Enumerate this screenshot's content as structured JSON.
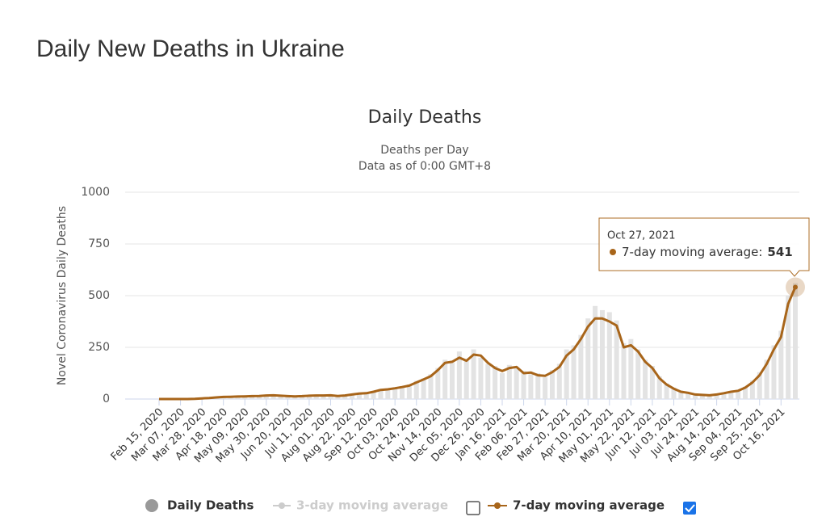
{
  "page_title": "Daily New Deaths in Ukraine",
  "chart_data": {
    "type": "line",
    "title": "Daily Deaths",
    "subtitle": [
      "Deaths per Day",
      "Data as of 0:00 GMT+8"
    ],
    "y_label": "Novel Coronavirus Daily Deaths",
    "categories": [
      "Feb 15, 2020",
      null,
      null,
      "Mar 07, 2020",
      null,
      null,
      "Mar 28, 2020",
      null,
      null,
      "Apr 18, 2020",
      null,
      null,
      "May 09, 2020",
      null,
      null,
      "May 30, 2020",
      null,
      null,
      "Jun 20, 2020",
      null,
      null,
      "Jul 11, 2020",
      null,
      null,
      "Aug 01, 2020",
      null,
      null,
      "Aug 22, 2020",
      null,
      null,
      "Sep 12, 2020",
      null,
      null,
      "Oct 03, 2020",
      null,
      null,
      "Oct 24, 2020",
      null,
      null,
      "Nov 14, 2020",
      null,
      null,
      "Dec 05, 2020",
      null,
      null,
      "Dec 26, 2020",
      null,
      null,
      "Jan 16, 2021",
      null,
      null,
      "Feb 06, 2021",
      null,
      null,
      "Feb 27, 2021",
      null,
      null,
      "Mar 20, 2021",
      null,
      null,
      "Apr 10, 2021",
      null,
      null,
      "May 01, 2021",
      null,
      null,
      "May 22, 2021",
      null,
      null,
      "Jun 12, 2021",
      null,
      null,
      "Jul 03, 2021",
      null,
      null,
      "Jul 24, 2021",
      null,
      null,
      "Aug 14, 2021",
      null,
      null,
      "Sep 04, 2021",
      null,
      null,
      "Sep 25, 2021",
      null,
      null,
      "Oct 16, 2021",
      null,
      null
    ],
    "series": [
      {
        "name": "Daily Deaths",
        "color": "#e3e3e3",
        "kind": "bar",
        "values": [
          0,
          0,
          0,
          0,
          0,
          2,
          4,
          6,
          9,
          12,
          10,
          14,
          12,
          16,
          14,
          20,
          19,
          15,
          13,
          15,
          13,
          18,
          16,
          19,
          20,
          14,
          18,
          25,
          28,
          30,
          38,
          48,
          45,
          56,
          62,
          70,
          88,
          100,
          120,
          150,
          190,
          175,
          230,
          190,
          240,
          200,
          170,
          160,
          125,
          165,
          150,
          135,
          120,
          125,
          105,
          140,
          170,
          240,
          260,
          310,
          390,
          450,
          430,
          420,
          380,
          270,
          290,
          240,
          190,
          160,
          110,
          75,
          55,
          40,
          33,
          25,
          22,
          20,
          25,
          30,
          38,
          45,
          60,
          90,
          130,
          190,
          260,
          330,
          500,
          560
        ]
      },
      {
        "name": "3-day moving average",
        "color": "#cccccc",
        "visible": false
      },
      {
        "name": "7-day moving average",
        "color": "#a8651a",
        "kind": "line",
        "values": [
          0,
          0,
          0,
          0,
          0,
          1,
          3,
          5,
          8,
          10,
          11,
          12,
          13,
          14,
          15,
          17,
          18,
          16,
          14,
          13,
          14,
          16,
          17,
          17,
          18,
          15,
          17,
          22,
          26,
          28,
          35,
          44,
          47,
          52,
          58,
          65,
          80,
          95,
          110,
          140,
          175,
          180,
          200,
          185,
          215,
          210,
          175,
          150,
          135,
          150,
          155,
          125,
          128,
          115,
          112,
          130,
          155,
          210,
          240,
          290,
          350,
          390,
          390,
          375,
          355,
          250,
          260,
          230,
          180,
          150,
          100,
          70,
          50,
          35,
          30,
          22,
          20,
          18,
          22,
          28,
          35,
          40,
          55,
          80,
          115,
          170,
          240,
          300,
          460,
          541
        ]
      }
    ],
    "ylim": [
      0,
      1000
    ],
    "yticks": [
      0,
      250,
      500,
      750,
      1000
    ],
    "grid": true,
    "tooltip": {
      "date": "Oct 27, 2021",
      "label": "7-day moving average:"
    }
  }
}
